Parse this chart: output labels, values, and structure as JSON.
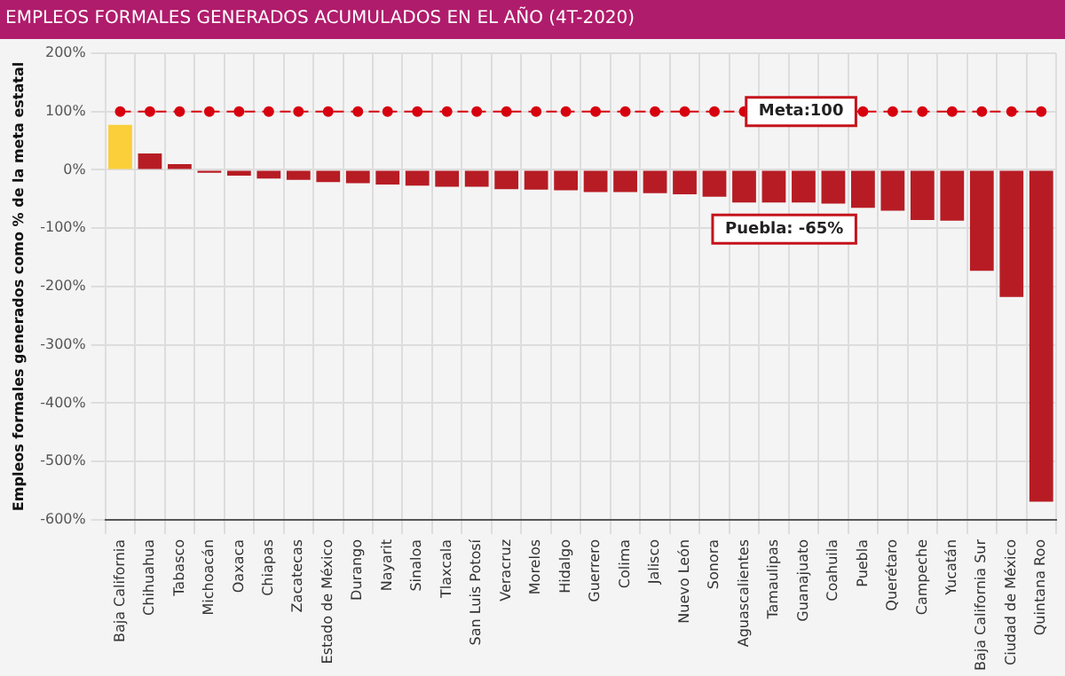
{
  "chart_data": {
    "type": "bar",
    "title": "EMPLEOS FORMALES GENERADOS ACUMULADOS EN EL AÑO (4T-2020)",
    "ylabel": "Empleos formales generados como % de la meta estatal",
    "categories": [
      "Baja California",
      "Chihuahua",
      "Tabasco",
      "Michoacán",
      "Oaxaca",
      "Chiapas",
      "Zacatecas",
      "Estado de México",
      "Durango",
      "Nayarit",
      "Sinaloa",
      "Tlaxcala",
      "San Luis Potosí",
      "Veracruz",
      "Morelos",
      "Hidalgo",
      "Guerrero",
      "Colima",
      "Jalisco",
      "Nuevo León",
      "Sonora",
      "Aguascalientes",
      "Tamaulipas",
      "Guanajuato",
      "Coahuila",
      "Puebla",
      "Querétaro",
      "Campeche",
      "Yucatán",
      "Baja California Sur",
      "Ciudad de México",
      "Quintana Roo"
    ],
    "series": [
      {
        "colors": [
          "#fbcf3a",
          "#b71c24",
          "#b71c24",
          "#b71c24",
          "#b71c24",
          "#b71c24",
          "#b71c24",
          "#b71c24",
          "#b71c24",
          "#b71c24",
          "#b71c24",
          "#b71c24",
          "#b71c24",
          "#b71c24",
          "#b71c24",
          "#b71c24",
          "#b71c24",
          "#b71c24",
          "#b71c24",
          "#b71c24",
          "#b71c24",
          "#b71c24",
          "#b71c24",
          "#b71c24",
          "#b71c24",
          "#b71c24",
          "#b71c24",
          "#b71c24",
          "#b71c24",
          "#b71c24",
          "#b71c24",
          "#b71c24"
        ],
        "values": [
          77,
          28,
          10,
          -5,
          -10,
          -15,
          -17,
          -21,
          -23,
          -25,
          -27,
          -29,
          -29,
          -33,
          -34,
          -35,
          -38,
          -38,
          -40,
          -42,
          -46,
          -56,
          -56,
          -56,
          -58,
          -65,
          -70,
          -86,
          -87,
          -173,
          -218,
          -569
        ]
      },
      {
        "type": "line",
        "color": "#d7000f",
        "values": [
          100,
          100,
          100,
          100,
          100,
          100,
          100,
          100,
          100,
          100,
          100,
          100,
          100,
          100,
          100,
          100,
          100,
          100,
          100,
          100,
          100,
          100,
          null,
          null,
          null,
          100,
          100,
          100,
          100,
          100,
          100,
          100
        ]
      }
    ],
    "ylim": [
      -600,
      200
    ],
    "yticks": [
      {
        "value": -600,
        "label": "-600%"
      },
      {
        "value": -500,
        "label": "-500%"
      },
      {
        "value": -400,
        "label": "-400%"
      },
      {
        "value": -300,
        "label": "-300%"
      },
      {
        "value": -200,
        "label": "-200%"
      },
      {
        "value": -100,
        "label": "-100%"
      },
      {
        "value": 0,
        "label": "0%"
      },
      {
        "value": 100,
        "label": "100%"
      },
      {
        "value": 200,
        "label": "200%"
      }
    ],
    "grid": true,
    "legend": false,
    "marker": "circle",
    "line_style": "dashed",
    "annotations": [
      {
        "text": "Meta:100",
        "x": "Puebla",
        "y": 100
      },
      {
        "text": "Puebla: -65%",
        "x": "Puebla",
        "y": -65
      }
    ]
  }
}
